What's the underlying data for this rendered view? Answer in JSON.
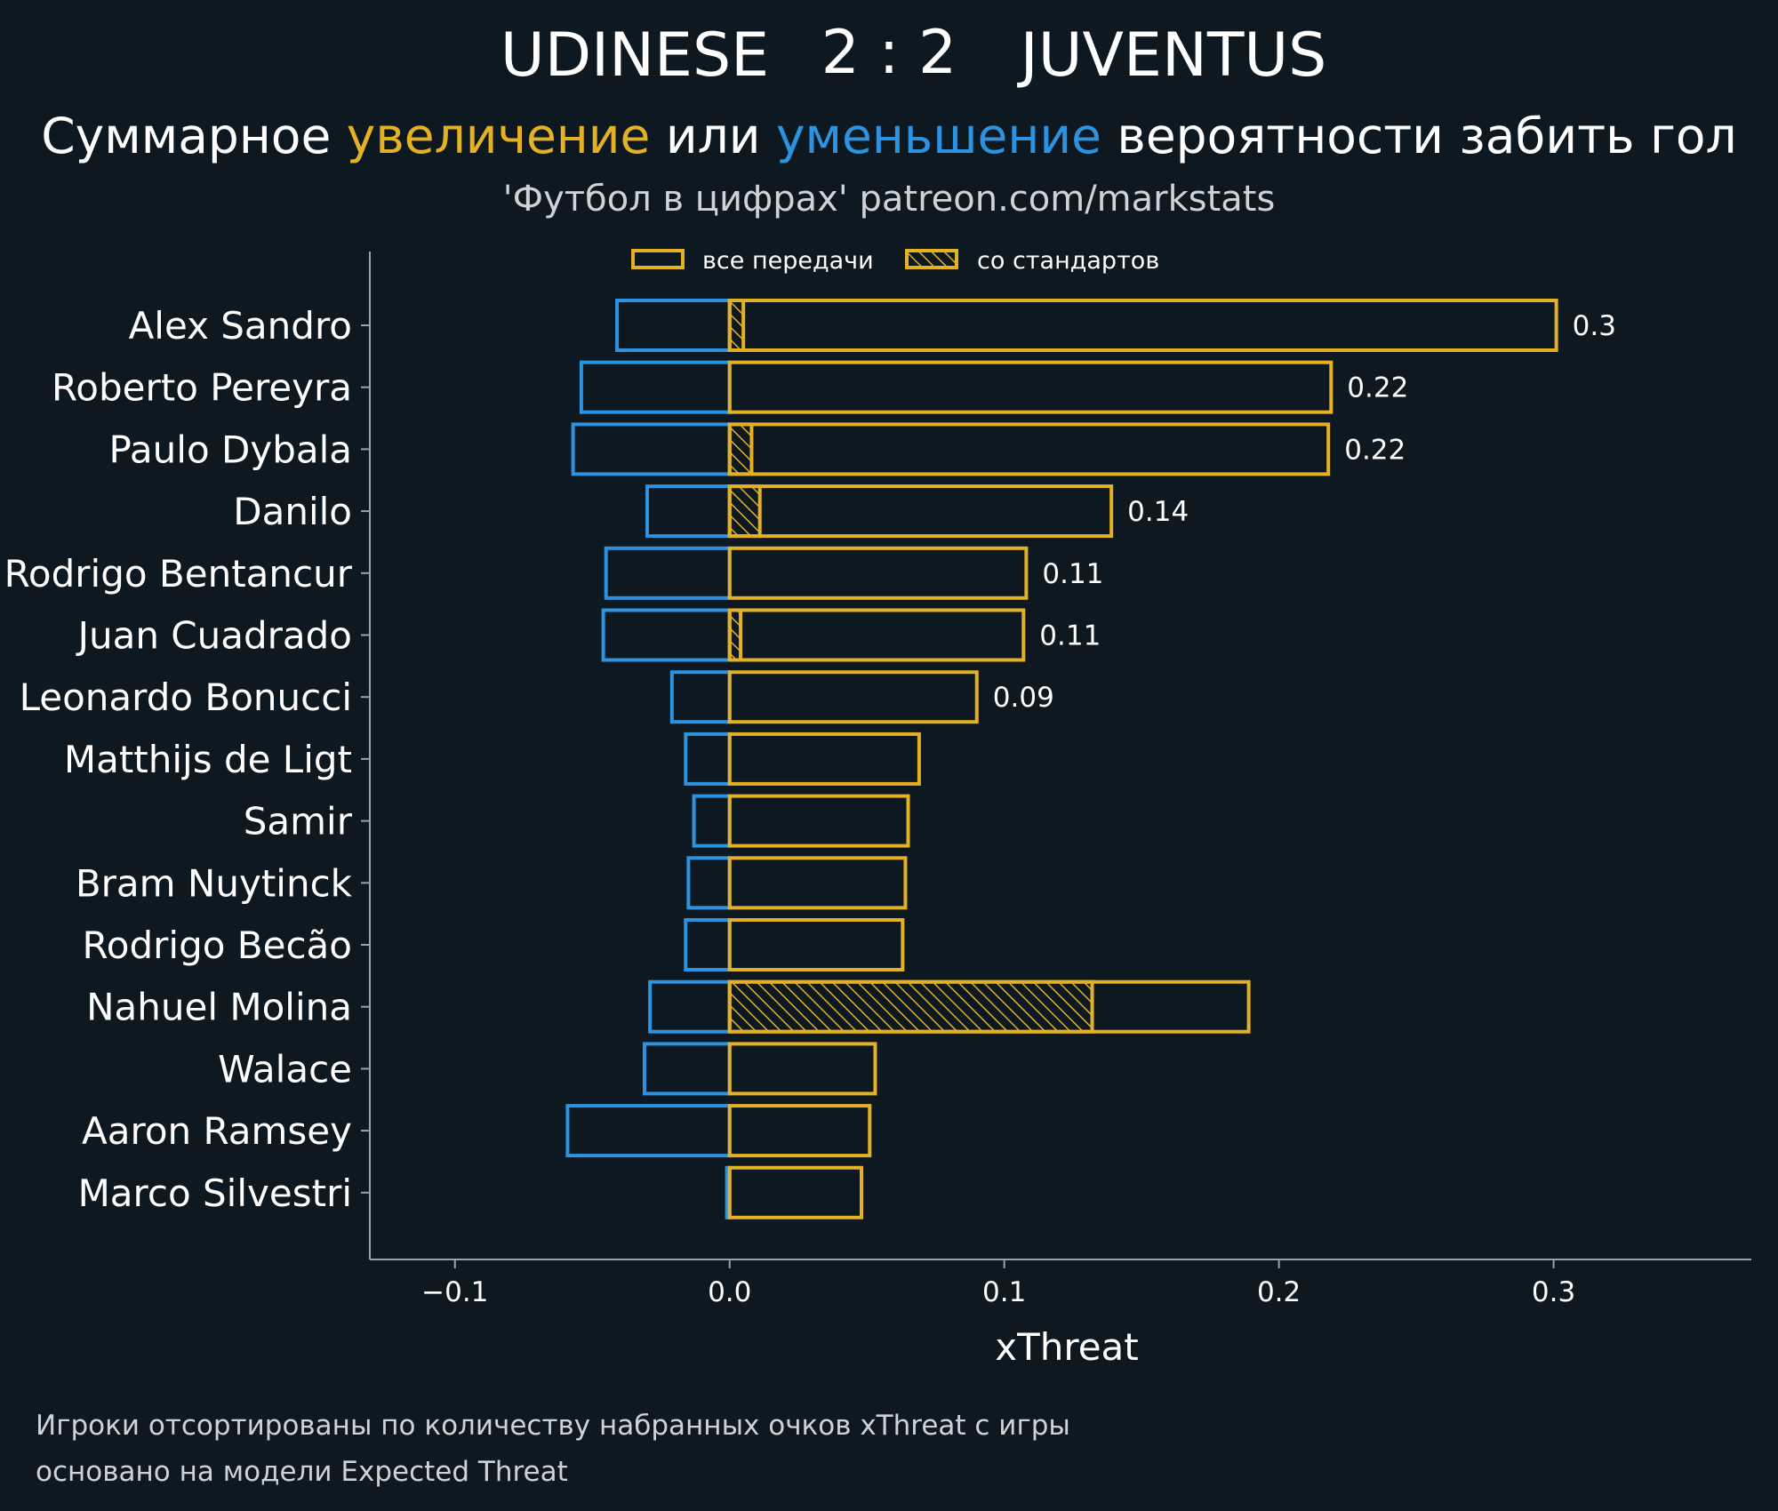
{
  "header": {
    "home_team": "UDINESE",
    "score": "2 : 2",
    "away_team": "JUVENTUS",
    "subtitle_parts": [
      {
        "text": "Суммарное ",
        "color": "#ffffff"
      },
      {
        "text": "увеличение",
        "color": "#e3b123"
      },
      {
        "text": " или ",
        "color": "#ffffff"
      },
      {
        "text": "уменьшение",
        "color": "#2c93e0"
      },
      {
        "text": " вероятности забить гол",
        "color": "#ffffff"
      }
    ],
    "credit": "'Футбол в цифрах' patreon.com/markstats"
  },
  "legend": {
    "all_passes": "все передачи",
    "set_pieces": "со стандартов"
  },
  "colors": {
    "background": "#0e1821",
    "increase": "#e3b123",
    "decrease": "#2c93e0",
    "axis": "#9aa3aa"
  },
  "chart_data": {
    "type": "bar",
    "orientation": "horizontal",
    "xlabel": "xThreat",
    "xlim": [
      -0.131,
      0.372
    ],
    "xticks": [
      -0.1,
      0.0,
      0.1,
      0.2,
      0.3
    ],
    "xtick_labels": [
      "−0.1",
      "0.0",
      "0.1",
      "0.2",
      "0.3"
    ],
    "categories": [
      "Alex Sandro",
      "Roberto Pereyra",
      "Paulo Dybala",
      "Danilo",
      "Rodrigo Bentancur",
      "Juan Cuadrado",
      "Leonardo Bonucci",
      "Matthijs de Ligt",
      "Samir",
      "Bram Nuytinck",
      "Rodrigo Becão",
      "Nahuel Molina",
      "Walace",
      "Aaron Ramsey",
      "Marco Silvestri"
    ],
    "series": [
      {
        "name": "все передачи",
        "values": [
          0.301,
          0.219,
          0.218,
          0.139,
          0.108,
          0.107,
          0.09,
          0.069,
          0.065,
          0.064,
          0.063,
          0.189,
          0.053,
          0.051,
          0.048
        ]
      },
      {
        "name": "со стандартов",
        "values": [
          0.005,
          0.0,
          0.008,
          0.011,
          0.0,
          0.004,
          0.0,
          0.0,
          0.0,
          0.0,
          0.0,
          0.132,
          0.0,
          0.0,
          0.0
        ]
      },
      {
        "values": [
          -0.041,
          -0.054,
          -0.057,
          -0.03,
          -0.045,
          -0.046,
          -0.021,
          -0.016,
          -0.013,
          -0.015,
          -0.016,
          -0.029,
          -0.031,
          -0.059,
          -0.001
        ]
      }
    ],
    "value_labels": [
      "0.3",
      "0.22",
      "0.22",
      "0.14",
      "0.11",
      "0.11",
      "0.09",
      "",
      "",
      "",
      "",
      "",
      "",
      "",
      ""
    ],
    "grid": false,
    "legend_position": "top-center"
  },
  "footnotes": [
    "Игроки отсортированы по количеству набранных очков xThreat с игры",
    "основано на модели Expected Threat"
  ]
}
